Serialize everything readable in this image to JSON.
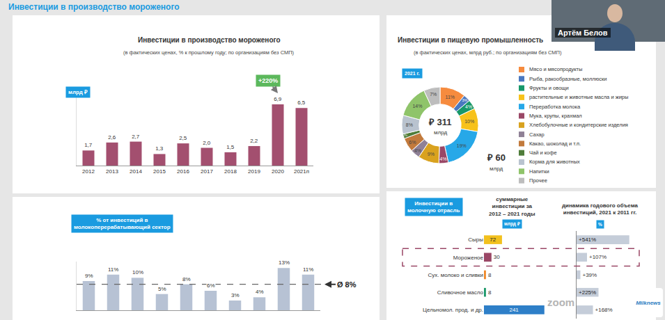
{
  "page": {
    "header": "Инвестиции в производство мороженого",
    "speaker": "Артём Белов",
    "logo": "Milknews",
    "watermark": "zoom"
  },
  "chart_data": [
    {
      "type": "bar",
      "title": "Инвестиции в производство мороженого",
      "subtitle": "(в фактических ценах, % к прошлому году; по организациям без СМП)",
      "unit": "млрд ₽",
      "categories": [
        "2012",
        "2013",
        "2014",
        "2015",
        "2016",
        "2017",
        "2018",
        "2019",
        "2020",
        "2021п"
      ],
      "values": [
        1.7,
        2.6,
        2.7,
        1.3,
        2.5,
        2.0,
        1.5,
        2.2,
        6.9,
        6.5
      ],
      "value_labels": [
        "1,7",
        "2,6",
        "2,7",
        "1,3",
        "2,5",
        "2,0",
        "1,5",
        "2,2",
        "6,9",
        "6,5"
      ],
      "color": "#a34f6f",
      "ylim": [
        0,
        8
      ],
      "yticks": [],
      "grid": false,
      "data_labels": true,
      "tick_labels": "x",
      "annotations": [
        {
          "text": "+220%",
          "category": "2020"
        }
      ]
    },
    {
      "type": "bar",
      "title": "% от инвестиций в молокоперерабатывающий сектор",
      "categories": [
        null,
        null,
        null,
        null,
        null,
        null,
        null,
        null,
        null,
        null
      ],
      "values": [
        9,
        11,
        10,
        5,
        8,
        6,
        3,
        4,
        13,
        11
      ],
      "value_labels": [
        "9%",
        "11%",
        "10%",
        "5%",
        "8%",
        "6%",
        "3%",
        "4%",
        "13%",
        "11%"
      ],
      "color": "#b7c2d4",
      "ylim": [
        0,
        15
      ],
      "yticks": [],
      "grid": false,
      "data_labels": true,
      "tick_labels": false,
      "average": {
        "value": 8,
        "label": "Ø 8%"
      }
    },
    {
      "type": "pie",
      "title": "Инвестиции в пищевую промышленность",
      "subtitle": "(в фактических ценах, млрд руб.; по организациям без СМП)",
      "year": "2021 г.",
      "total": "₽ 311",
      "total_unit": "млрд",
      "callout": "₽ 60",
      "callout_unit": "млрд",
      "categories": [
        "Мясо и мясопродукты",
        "Рыба, ракообразные, моллюски",
        "Фрукты и овощи",
        "растительные и животные масла и жиры",
        "Переработка молока",
        "Мука, крупы, крахмал",
        "Хлебобулочные и кондитерские изделия",
        "Сахар",
        "Какао, шоколад и т.п.",
        "Чай и кофе",
        "Корма для животных",
        "Напитки",
        "Прочее"
      ],
      "values": [
        11,
        3,
        4,
        10,
        19,
        4,
        9,
        4,
        6,
        2,
        8,
        14,
        7
      ],
      "value_labels": [
        "11%",
        "3%",
        "4%",
        "10%",
        "19%",
        "4%",
        "9%",
        "4%",
        "6%",
        "2%",
        "8%",
        "14%",
        "7%"
      ],
      "colors": [
        "#f68b3e",
        "#4a78c0",
        "#17986a",
        "#f7c21b",
        "#27a8e8",
        "#9a4766",
        "#d9a21f",
        "#8f8196",
        "#c27a3c",
        "#4f7d3a",
        "#b9c3cf",
        "#8fc46a",
        "#bdbdbd"
      ],
      "data_labels": true,
      "legend": "right"
    },
    {
      "type": "bar",
      "orientation": "horizontal",
      "title": "Инвестиции в молочную отрасль",
      "categories": [
        "Сыры",
        "Мороженое",
        "Сух. молоко и сливки",
        "Сливочное масло",
        "Цельномол. прод. и др."
      ],
      "highlight": "Мороженое",
      "series": [
        {
          "name": "суммарные инвестиции за 2012 – 2021 годы",
          "unit": "млрд ₽",
          "values": [
            72,
            30,
            8,
            8,
            241
          ],
          "colors": [
            "#f2c01e",
            "#9a4766",
            "#f08a2c",
            "#1f9a6b",
            "#2e7fc8"
          ],
          "xlim": [
            0,
            250
          ]
        },
        {
          "name": "динамика годового объема инвестиций, 2021 к 2011 гг.",
          "unit": "%",
          "values": [
            541,
            107,
            39,
            225,
            168
          ],
          "value_labels": [
            "+541%",
            "+107%",
            "+39%",
            "+225%",
            "+168%"
          ],
          "color": "#c5cdd9",
          "xlim": [
            0,
            600
          ]
        }
      ],
      "data_labels": true,
      "tick_labels": "y"
    }
  ]
}
